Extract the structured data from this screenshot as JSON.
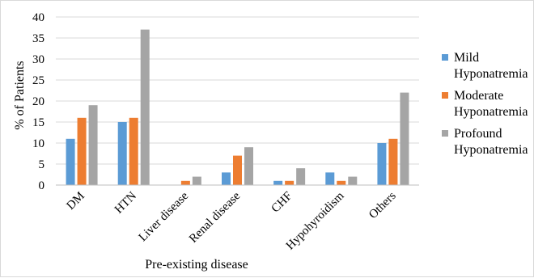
{
  "chart_data": {
    "type": "bar",
    "title": "",
    "xlabel": "Pre-existing disease",
    "ylabel": "% of Patients",
    "ylim": [
      0,
      40
    ],
    "yticks": [
      0,
      5,
      10,
      15,
      20,
      25,
      30,
      35,
      40
    ],
    "grid": true,
    "legend_position": "right",
    "categories": [
      "DM",
      "HTN",
      "Liver disease",
      "Renal disease",
      "CHF",
      "Hypohyroidism",
      "Others"
    ],
    "series": [
      {
        "name": "Mild Hyponatremia",
        "name_lines": [
          "Mild",
          "Hyponatremia"
        ],
        "color": "#5b9bd5",
        "values": [
          11,
          15,
          0,
          3,
          1,
          3,
          10
        ]
      },
      {
        "name": "Moderate Hyponatremia",
        "name_lines": [
          "Moderate",
          "Hyponatremia"
        ],
        "color": "#ed7d31",
        "values": [
          16,
          16,
          1,
          7,
          1,
          1,
          11
        ]
      },
      {
        "name": "Profound Hyponatremia",
        "name_lines": [
          "Profound",
          "Hyponatremia"
        ],
        "color": "#a5a5a5",
        "values": [
          19,
          37,
          2,
          9,
          4,
          2,
          22
        ]
      }
    ]
  }
}
